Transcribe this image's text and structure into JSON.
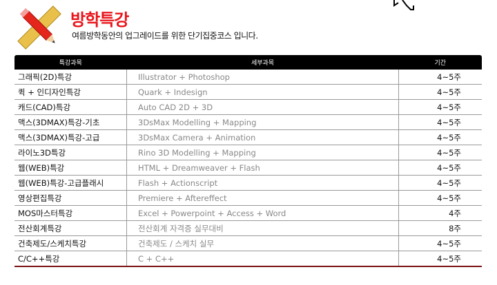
{
  "header": {
    "title": "방학특강",
    "subtitle": "여름방학동안의 업그레이드를 위한 단기집중코스 입니다.",
    "title_color": "#e8141b"
  },
  "table": {
    "columns": [
      "특강과목",
      "세부과목",
      "기간"
    ],
    "rows": [
      [
        "그래픽(2D)특강",
        "Illustrator + Photoshop",
        "4~5주"
      ],
      [
        "퀵 + 인디자인특강",
        "Quark + Indesign",
        "4~5주"
      ],
      [
        "캐드(CAD)특강",
        "Auto CAD 2D + 3D",
        "4~5주"
      ],
      [
        "맥스(3DMAX)특강-기초",
        "3DsMax Modelling + Mapping",
        "4~5주"
      ],
      [
        "맥스(3DMAX)특강-고급",
        "3DsMax Camera + Animation",
        "4~5주"
      ],
      [
        "라이노3D특강",
        "Rino 3D Modelling + Mapping",
        "4~5주"
      ],
      [
        "웹(WEB)특강",
        "HTML + Dreamweaver + Flash",
        "4~5주"
      ],
      [
        "웹(WEB)특강-고급플래시",
        "Flash + Actionscript",
        "4~5주"
      ],
      [
        "영상편집특강",
        "Premiere + Aftereffect",
        "4~5주"
      ],
      [
        "MOS마스터특강",
        "Excel + Powerpoint + Access + Word",
        "4주"
      ],
      [
        "전산회계특강",
        "전산회계 자격증 실무대비",
        "8주"
      ],
      [
        "건축제도/스케치특강",
        "건축제도 / 스케치 실무",
        "4~5주"
      ],
      [
        "C/C++특강",
        "C + C++",
        "4~5주"
      ]
    ]
  },
  "icons": {
    "logo": "pencil-ruler-icon",
    "cursor": "mouse-cursor-icon"
  }
}
